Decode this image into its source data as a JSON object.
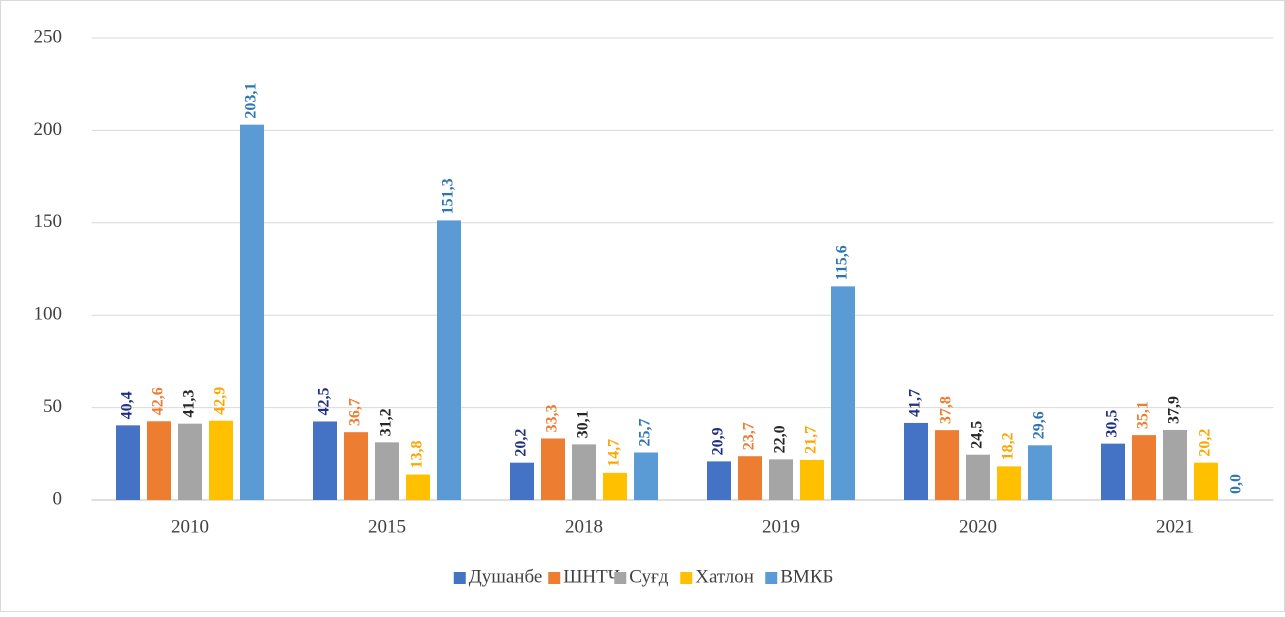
{
  "chart_data": {
    "type": "bar",
    "categories": [
      "2010",
      "2015",
      "2018",
      "2019",
      "2020",
      "2021"
    ],
    "series": [
      {
        "name": "Душанбе",
        "color": "#4472c4",
        "label_color": "#203080",
        "values": [
          40.4,
          42.5,
          20.2,
          20.9,
          41.7,
          30.5
        ],
        "value_labels": [
          "40,4",
          "42,5",
          "20,2",
          "20,9",
          "41,7",
          "30,5"
        ]
      },
      {
        "name": "ШНТЧ",
        "color": "#ed7d31",
        "label_color": "#ed7d31",
        "values": [
          42.6,
          36.7,
          33.3,
          23.7,
          37.8,
          35.1
        ],
        "value_labels": [
          "42,6",
          "36,7",
          "33,3",
          "23,7",
          "37,8",
          "35,1"
        ]
      },
      {
        "name": "Суғд",
        "color": "#a5a5a5",
        "label_color": "#262626",
        "values": [
          41.3,
          31.2,
          30.1,
          22.0,
          24.5,
          37.9
        ],
        "value_labels": [
          "41,3",
          "31,2",
          "30,1",
          "22,0",
          "24,5",
          "37,9"
        ]
      },
      {
        "name": "Хатлон",
        "color": "#ffc000",
        "label_color": "#ffa500",
        "values": [
          42.9,
          13.8,
          14.7,
          21.7,
          18.2,
          20.2
        ],
        "value_labels": [
          "42,9",
          "13,8",
          "14,7",
          "21,7",
          "18,2",
          "20,2"
        ]
      },
      {
        "name": "ВМКБ",
        "color": "#5b9bd5",
        "label_color": "#2e75b6",
        "values": [
          203.1,
          151.3,
          25.7,
          115.6,
          29.6,
          0.0
        ],
        "value_labels": [
          "203,1",
          "151,3",
          "25,7",
          "115,6",
          "29,6",
          "0,0"
        ]
      }
    ],
    "ylim": [
      0,
      250
    ],
    "yticks": [
      0,
      50,
      100,
      150,
      200,
      250
    ],
    "grid": true,
    "legend": "bottom"
  }
}
